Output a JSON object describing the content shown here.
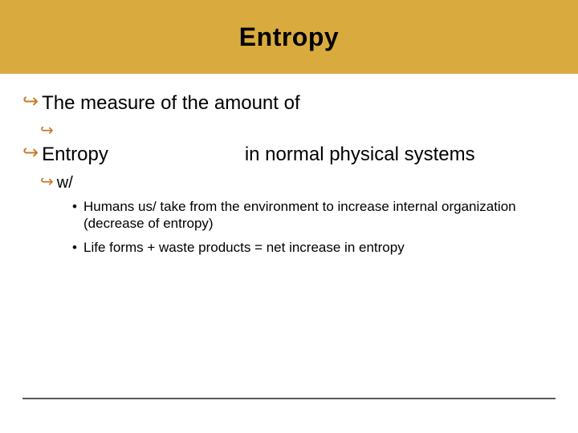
{
  "colors": {
    "title_bar_bg": "#d9ab3e",
    "arrow_color": "#c57b2a",
    "text_color": "#000000",
    "footer_rule_color": "#5a5a5a",
    "background": "#ffffff"
  },
  "typography": {
    "title_fontsize": 32,
    "title_weight": 900,
    "lvl1_fontsize": 24,
    "lvl2_fontsize": 20,
    "sub_fontsize": 17
  },
  "title": "Entropy",
  "bullets": {
    "b1": "The measure of the amount of",
    "b2": "",
    "b3_left": "Entropy",
    "b3_right": "in normal physical systems",
    "b4": "w/",
    "sub1": "Humans us/ take from the environment to increase internal organization (decrease of entropy)",
    "sub2": "Life forms + waste products = net increase in entropy"
  },
  "glyphs": {
    "arrow": "↪"
  }
}
